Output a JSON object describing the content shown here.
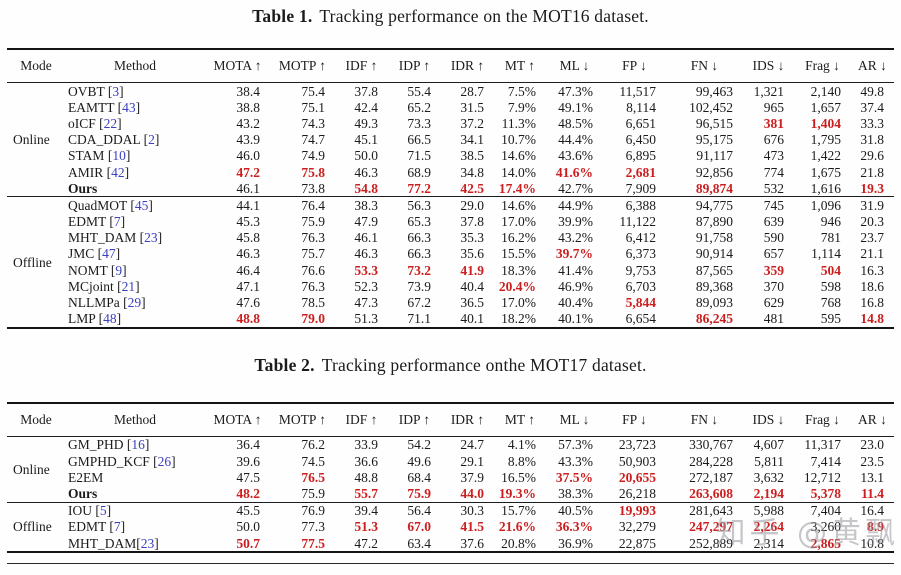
{
  "watermark": "知乎 @黄飘",
  "colors": {
    "highlight_red": "#cc1e1e",
    "citation_blue": "#3a3fc1"
  },
  "columns": [
    "Mode",
    "Method",
    "MOTA ↑",
    "MOTP ↑",
    "IDF ↑",
    "IDP ↑",
    "IDR ↑",
    "MT ↑",
    "ML ↓",
    "FP ↓",
    "FN ↓",
    "IDS ↓",
    "Frag ↓",
    "AR ↓"
  ],
  "tables": [
    {
      "caption_label": "Table 1.",
      "caption_text": "Tracking performance on the MOT16 dataset.",
      "sections": [
        {
          "mode": "Online",
          "rows": [
            {
              "method": "OVBT",
              "cite": "3",
              "cells": [
                "38.4",
                "75.4",
                "37.8",
                "55.4",
                "28.7",
                "7.5%",
                "47.3%",
                "11,517",
                "99,463",
                "1,321",
                "2,140",
                "49.8"
              ],
              "hl": []
            },
            {
              "method": "EAMTT",
              "cite": "43",
              "cells": [
                "38.8",
                "75.1",
                "42.4",
                "65.2",
                "31.5",
                "7.9%",
                "49.1%",
                "8,114",
                "102,452",
                "965",
                "1,657",
                "37.4"
              ],
              "hl": []
            },
            {
              "method": "oICF",
              "cite": "22",
              "cells": [
                "43.2",
                "74.3",
                "49.3",
                "73.3",
                "37.2",
                "11.3%",
                "48.5%",
                "6,651",
                "96,515",
                "381",
                "1,404",
                "33.3"
              ],
              "hl": [
                9,
                10
              ]
            },
            {
              "method": "CDA_DDAL",
              "cite": "2",
              "cells": [
                "43.9",
                "74.7",
                "45.1",
                "66.5",
                "34.1",
                "10.7%",
                "44.4%",
                "6,450",
                "95,175",
                "676",
                "1,795",
                "31.8"
              ],
              "hl": []
            },
            {
              "method": "STAM",
              "cite": "10",
              "cells": [
                "46.0",
                "74.9",
                "50.0",
                "71.5",
                "38.5",
                "14.6%",
                "43.6%",
                "6,895",
                "91,117",
                "473",
                "1,422",
                "29.6"
              ],
              "hl": []
            },
            {
              "method": "AMIR",
              "cite": "42",
              "cells": [
                "47.2",
                "75.8",
                "46.3",
                "68.9",
                "34.8",
                "14.0%",
                "41.6%",
                "2,681",
                "92,856",
                "774",
                "1,675",
                "21.8"
              ],
              "hl": [
                0,
                1,
                6,
                7
              ]
            },
            {
              "method": "Ours",
              "bold": true,
              "cells": [
                "46.1",
                "73.8",
                "54.8",
                "77.2",
                "42.5",
                "17.4%",
                "42.7%",
                "7,909",
                "89,874",
                "532",
                "1,616",
                "19.3"
              ],
              "hl": [
                2,
                3,
                4,
                5,
                8,
                11
              ]
            }
          ]
        },
        {
          "mode": "Offline",
          "rows": [
            {
              "method": "QuadMOT",
              "cite": "45",
              "cells": [
                "44.1",
                "76.4",
                "38.3",
                "56.3",
                "29.0",
                "14.6%",
                "44.9%",
                "6,388",
                "94,775",
                "745",
                "1,096",
                "31.9"
              ],
              "hl": []
            },
            {
              "method": "EDMT",
              "cite": "7",
              "cells": [
                "45.3",
                "75.9",
                "47.9",
                "65.3",
                "37.8",
                "17.0%",
                "39.9%",
                "11,122",
                "87,890",
                "639",
                "946",
                "20.3"
              ],
              "hl": []
            },
            {
              "method": "MHT_DAM",
              "cite": "23",
              "cells": [
                "45.8",
                "76.3",
                "46.1",
                "66.3",
                "35.3",
                "16.2%",
                "43.2%",
                "6,412",
                "91,758",
                "590",
                "781",
                "23.7"
              ],
              "hl": []
            },
            {
              "method": "JMC",
              "cite": "47",
              "cells": [
                "46.3",
                "75.7",
                "46.3",
                "66.3",
                "35.6",
                "15.5%",
                "39.7%",
                "6,373",
                "90,914",
                "657",
                "1,114",
                "21.1"
              ],
              "hl": [
                6
              ]
            },
            {
              "method": "NOMT",
              "cite": "9",
              "cells": [
                "46.4",
                "76.6",
                "53.3",
                "73.2",
                "41.9",
                "18.3%",
                "41.4%",
                "9,753",
                "87,565",
                "359",
                "504",
                "16.3"
              ],
              "hl": [
                2,
                3,
                4,
                9,
                10
              ]
            },
            {
              "method": "MCjoint",
              "cite": "21",
              "cells": [
                "47.1",
                "76.3",
                "52.3",
                "73.9",
                "40.4",
                "20.4%",
                "46.9%",
                "6,703",
                "89,368",
                "370",
                "598",
                "18.6"
              ],
              "hl": [
                5
              ]
            },
            {
              "method": "NLLMPa",
              "cite": "29",
              "cells": [
                "47.6",
                "78.5",
                "47.3",
                "67.2",
                "36.5",
                "17.0%",
                "40.4%",
                "5,844",
                "89,093",
                "629",
                "768",
                "16.8"
              ],
              "hl": [
                7
              ]
            },
            {
              "method": "LMP",
              "cite": "48",
              "cells": [
                "48.8",
                "79.0",
                "51.3",
                "71.1",
                "40.1",
                "18.2%",
                "40.1%",
                "6,654",
                "86,245",
                "481",
                "595",
                "14.8"
              ],
              "hl": [
                0,
                1,
                8,
                11
              ]
            }
          ]
        }
      ]
    },
    {
      "caption_label": "Table 2.",
      "caption_text": "Tracking performance onthe MOT17 dataset.",
      "sections": [
        {
          "mode": "Online",
          "rows": [
            {
              "method": "GM_PHD",
              "cite": "16",
              "cells": [
                "36.4",
                "76.2",
                "33.9",
                "54.2",
                "24.7",
                "4.1%",
                "57.3%",
                "23,723",
                "330,767",
                "4,607",
                "11,317",
                "23.0"
              ],
              "hl": []
            },
            {
              "method": "GMPHD_KCF",
              "cite": "26",
              "cells": [
                "39.6",
                "74.5",
                "36.6",
                "49.6",
                "29.1",
                "8.8%",
                "43.3%",
                "50,903",
                "284,228",
                "5,811",
                "7,414",
                "23.5"
              ],
              "hl": []
            },
            {
              "method": "E2EM",
              "cells": [
                "47.5",
                "76.5",
                "48.8",
                "68.4",
                "37.9",
                "16.5%",
                "37.5%",
                "20,655",
                "272,187",
                "3,632",
                "12,712",
                "13.1"
              ],
              "hl": [
                1,
                6,
                7
              ]
            },
            {
              "method": "Ours",
              "bold": true,
              "cells": [
                "48.2",
                "75.9",
                "55.7",
                "75.9",
                "44.0",
                "19.3%",
                "38.3%",
                "26,218",
                "263,608",
                "2,194",
                "5,378",
                "11.4"
              ],
              "hl": [
                0,
                2,
                3,
                4,
                5,
                8,
                9,
                10,
                11
              ]
            }
          ]
        },
        {
          "mode": "Offline",
          "rows": [
            {
              "method": "IOU",
              "cite": "5",
              "cells": [
                "45.5",
                "76.9",
                "39.4",
                "56.4",
                "30.3",
                "15.7%",
                "40.5%",
                "19,993",
                "281,643",
                "5,988",
                "7,404",
                "16.4"
              ],
              "hl": [
                7
              ]
            },
            {
              "method": "EDMT",
              "cite": "7",
              "cells": [
                "50.0",
                "77.3",
                "51.3",
                "67.0",
                "41.5",
                "21.6%",
                "36.3%",
                "32,279",
                "247,297",
                "2,264",
                "3,260",
                "8.9"
              ],
              "hl": [
                2,
                3,
                4,
                5,
                6,
                8,
                9,
                11
              ]
            },
            {
              "method": "MHT_DAM",
              "cite": "23",
              "nospace": true,
              "cells": [
                "50.7",
                "77.5",
                "47.2",
                "63.4",
                "37.6",
                "20.8%",
                "36.9%",
                "22,875",
                "252,889",
                "2,314",
                "2,865",
                "10.8"
              ],
              "hl": [
                0,
                1,
                10
              ]
            }
          ]
        }
      ]
    }
  ]
}
